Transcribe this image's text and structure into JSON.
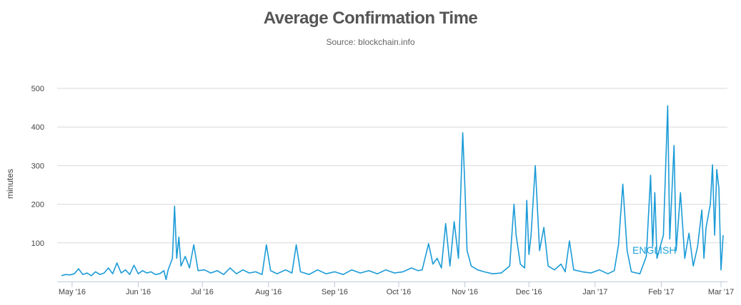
{
  "chart_data": {
    "type": "line",
    "title": "Average Confirmation Time",
    "subtitle": "Source: blockchain.info",
    "ylabel": "minutes",
    "xlabel": "",
    "ylim": [
      0,
      500
    ],
    "yticks": [
      100,
      200,
      300,
      400,
      500
    ],
    "xlim": [
      "2016-04-24",
      "2017-03-04"
    ],
    "xticks": [
      {
        "date": "2016-05-01",
        "label": "May '16"
      },
      {
        "date": "2016-06-01",
        "label": "Jun '16"
      },
      {
        "date": "2016-07-01",
        "label": "Jul '16"
      },
      {
        "date": "2016-08-01",
        "label": "Aug '16"
      },
      {
        "date": "2016-09-01",
        "label": "Sep '16"
      },
      {
        "date": "2016-10-01",
        "label": "Oct '16"
      },
      {
        "date": "2016-11-01",
        "label": "Nov '16"
      },
      {
        "date": "2016-12-01",
        "label": "Dec '16"
      },
      {
        "date": "2017-01-01",
        "label": "Jan '17"
      },
      {
        "date": "2017-02-01",
        "label": "Feb '17"
      },
      {
        "date": "2017-03-01",
        "label": "Mar '17"
      }
    ],
    "grid": true,
    "line_color": "#1b9bd7",
    "watermark": "ENGLISH",
    "series": [
      {
        "name": "",
        "points": [
          [
            "2016-04-26",
            15
          ],
          [
            "2016-04-28",
            18
          ],
          [
            "2016-04-30",
            17
          ],
          [
            "2016-05-02",
            20
          ],
          [
            "2016-05-04",
            33
          ],
          [
            "2016-05-06",
            18
          ],
          [
            "2016-05-08",
            22
          ],
          [
            "2016-05-10",
            15
          ],
          [
            "2016-05-12",
            25
          ],
          [
            "2016-05-14",
            18
          ],
          [
            "2016-05-16",
            22
          ],
          [
            "2016-05-18",
            35
          ],
          [
            "2016-05-20",
            20
          ],
          [
            "2016-05-22",
            48
          ],
          [
            "2016-05-24",
            22
          ],
          [
            "2016-05-26",
            30
          ],
          [
            "2016-05-28",
            18
          ],
          [
            "2016-05-30",
            42
          ],
          [
            "2016-06-01",
            20
          ],
          [
            "2016-06-03",
            28
          ],
          [
            "2016-06-05",
            22
          ],
          [
            "2016-06-07",
            25
          ],
          [
            "2016-06-09",
            18
          ],
          [
            "2016-06-11",
            20
          ],
          [
            "2016-06-13",
            28
          ],
          [
            "2016-06-14",
            5
          ],
          [
            "2016-06-15",
            30
          ],
          [
            "2016-06-17",
            60
          ],
          [
            "2016-06-18",
            195
          ],
          [
            "2016-06-19",
            60
          ],
          [
            "2016-06-20",
            115
          ],
          [
            "2016-06-21",
            40
          ],
          [
            "2016-06-23",
            65
          ],
          [
            "2016-06-25",
            35
          ],
          [
            "2016-06-27",
            95
          ],
          [
            "2016-06-29",
            28
          ],
          [
            "2016-07-02",
            30
          ],
          [
            "2016-07-05",
            22
          ],
          [
            "2016-07-08",
            28
          ],
          [
            "2016-07-11",
            18
          ],
          [
            "2016-07-14",
            35
          ],
          [
            "2016-07-17",
            20
          ],
          [
            "2016-07-20",
            30
          ],
          [
            "2016-07-23",
            22
          ],
          [
            "2016-07-26",
            25
          ],
          [
            "2016-07-29",
            18
          ],
          [
            "2016-07-31",
            95
          ],
          [
            "2016-08-02",
            28
          ],
          [
            "2016-08-05",
            20
          ],
          [
            "2016-08-09",
            30
          ],
          [
            "2016-08-12",
            22
          ],
          [
            "2016-08-14",
            95
          ],
          [
            "2016-08-16",
            25
          ],
          [
            "2016-08-20",
            18
          ],
          [
            "2016-08-24",
            30
          ],
          [
            "2016-08-28",
            20
          ],
          [
            "2016-09-01",
            25
          ],
          [
            "2016-09-05",
            18
          ],
          [
            "2016-09-09",
            30
          ],
          [
            "2016-09-13",
            22
          ],
          [
            "2016-09-17",
            28
          ],
          [
            "2016-09-21",
            20
          ],
          [
            "2016-09-25",
            30
          ],
          [
            "2016-09-29",
            22
          ],
          [
            "2016-10-03",
            25
          ],
          [
            "2016-10-07",
            35
          ],
          [
            "2016-10-10",
            28
          ],
          [
            "2016-10-12",
            30
          ],
          [
            "2016-10-15",
            98
          ],
          [
            "2016-10-17",
            45
          ],
          [
            "2016-10-19",
            60
          ],
          [
            "2016-10-21",
            35
          ],
          [
            "2016-10-23",
            150
          ],
          [
            "2016-10-25",
            40
          ],
          [
            "2016-10-27",
            155
          ],
          [
            "2016-10-29",
            60
          ],
          [
            "2016-10-31",
            385
          ],
          [
            "2016-11-01",
            245
          ],
          [
            "2016-11-02",
            80
          ],
          [
            "2016-11-04",
            40
          ],
          [
            "2016-11-07",
            30
          ],
          [
            "2016-11-10",
            25
          ],
          [
            "2016-11-14",
            20
          ],
          [
            "2016-11-18",
            22
          ],
          [
            "2016-11-22",
            40
          ],
          [
            "2016-11-24",
            200
          ],
          [
            "2016-11-25",
            120
          ],
          [
            "2016-11-27",
            45
          ],
          [
            "2016-11-29",
            35
          ],
          [
            "2016-11-30",
            210
          ],
          [
            "2016-12-01",
            70
          ],
          [
            "2016-12-02",
            120
          ],
          [
            "2016-12-04",
            300
          ],
          [
            "2016-12-06",
            80
          ],
          [
            "2016-12-08",
            140
          ],
          [
            "2016-12-10",
            40
          ],
          [
            "2016-12-13",
            30
          ],
          [
            "2016-12-16",
            45
          ],
          [
            "2016-12-18",
            25
          ],
          [
            "2016-12-20",
            105
          ],
          [
            "2016-12-22",
            30
          ],
          [
            "2016-12-26",
            25
          ],
          [
            "2016-12-30",
            22
          ],
          [
            "2017-01-03",
            30
          ],
          [
            "2017-01-07",
            20
          ],
          [
            "2017-01-10",
            28
          ],
          [
            "2017-01-12",
            95
          ],
          [
            "2017-01-14",
            252
          ],
          [
            "2017-01-16",
            80
          ],
          [
            "2017-01-18",
            25
          ],
          [
            "2017-01-22",
            20
          ],
          [
            "2017-01-25",
            65
          ],
          [
            "2017-01-27",
            275
          ],
          [
            "2017-01-28",
            90
          ],
          [
            "2017-01-29",
            230
          ],
          [
            "2017-01-30",
            60
          ],
          [
            "2017-02-02",
            120
          ],
          [
            "2017-02-04",
            455
          ],
          [
            "2017-02-05",
            110
          ],
          [
            "2017-02-07",
            352
          ],
          [
            "2017-02-08",
            80
          ],
          [
            "2017-02-10",
            230
          ],
          [
            "2017-02-12",
            60
          ],
          [
            "2017-02-14",
            125
          ],
          [
            "2017-02-16",
            40
          ],
          [
            "2017-02-18",
            90
          ],
          [
            "2017-02-20",
            185
          ],
          [
            "2017-02-21",
            60
          ],
          [
            "2017-02-22",
            140
          ],
          [
            "2017-02-24",
            200
          ],
          [
            "2017-02-25",
            302
          ],
          [
            "2017-02-26",
            120
          ],
          [
            "2017-02-27",
            290
          ],
          [
            "2017-02-28",
            240
          ],
          [
            "2017-03-01",
            30
          ],
          [
            "2017-03-02",
            120
          ]
        ]
      }
    ]
  }
}
